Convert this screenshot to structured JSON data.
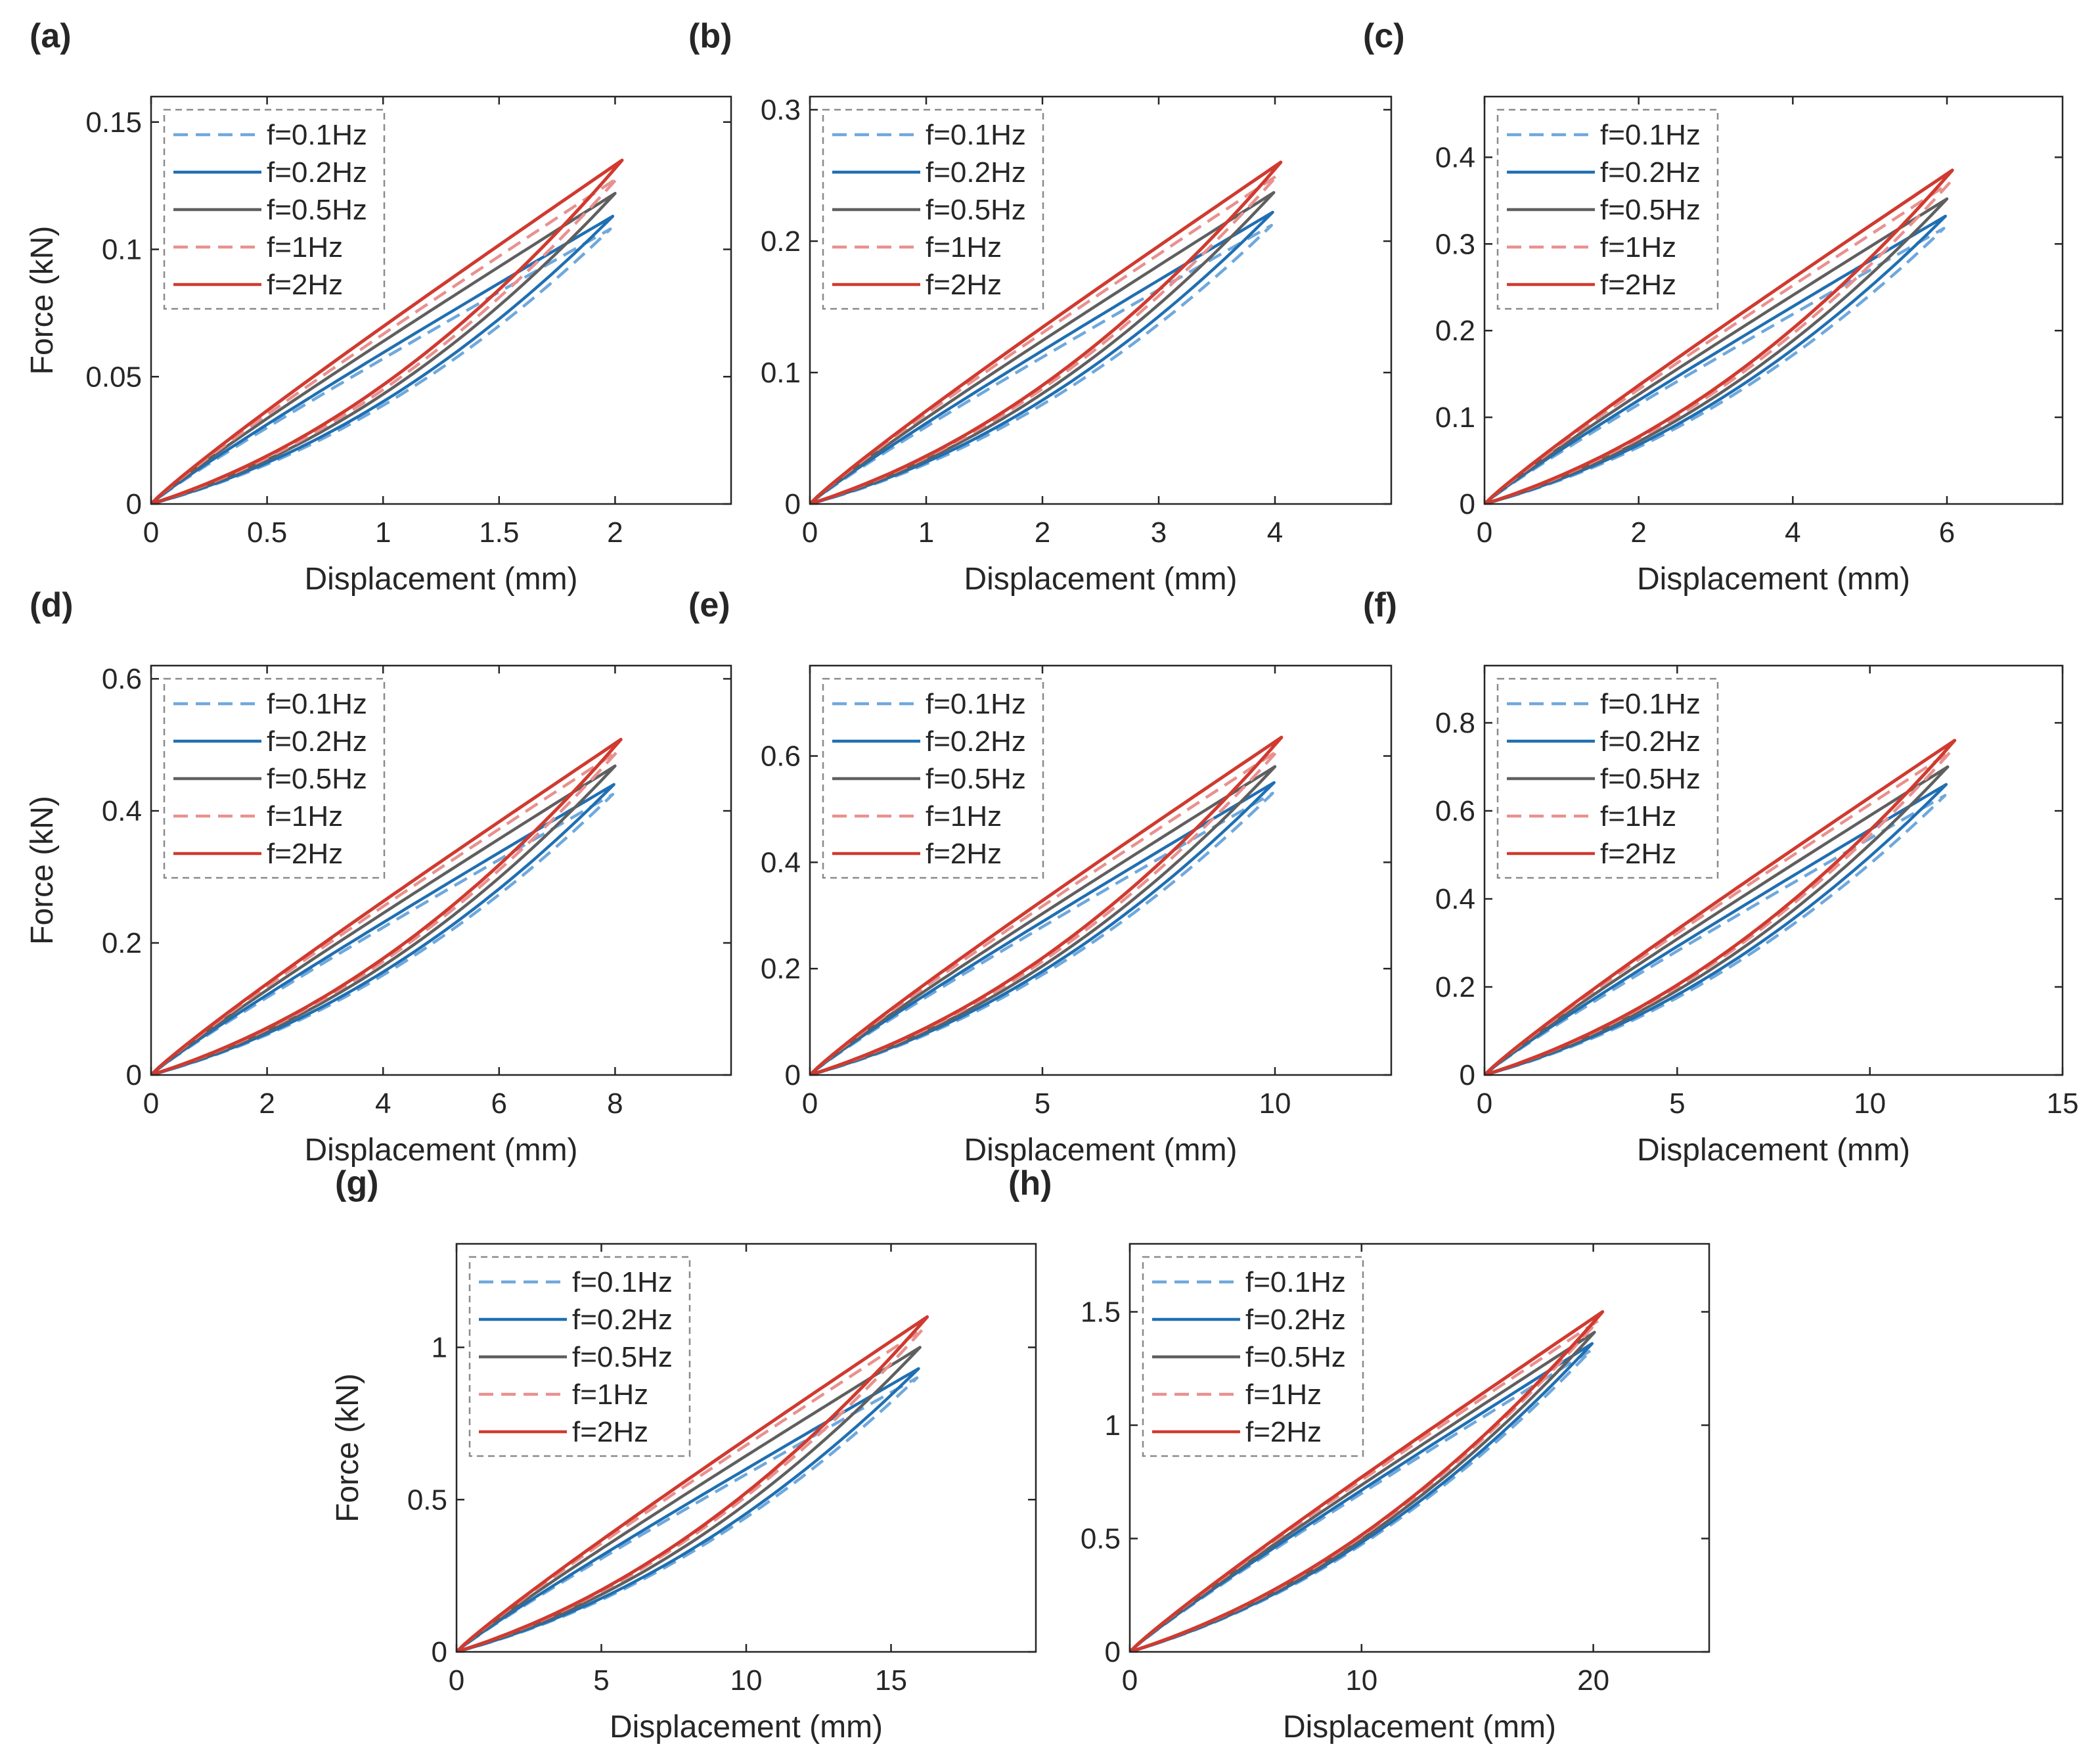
{
  "figure": {
    "series_styles": [
      {
        "freq": "f=0.1Hz",
        "color": "#6fa8dc",
        "dash": true
      },
      {
        "freq": "f=0.2Hz",
        "color": "#1f6fb2",
        "dash": false
      },
      {
        "freq": "f=0.5Hz",
        "color": "#5f5f5f",
        "dash": false
      },
      {
        "freq": "f=1Hz",
        "color": "#e8918f",
        "dash": true
      },
      {
        "freq": "f=2Hz",
        "color": "#d03a2f",
        "dash": false
      }
    ]
  },
  "chart_data": [
    {
      "panel": "(a)",
      "type": "line",
      "xlabel": "Displacement (mm)",
      "ylabel": "Force (kN)",
      "xlim": [
        0,
        2.5
      ],
      "ylim": [
        0,
        0.16
      ],
      "xticks": [
        0,
        0.5,
        1,
        1.5,
        2
      ],
      "xtick_labels": [
        "0",
        "0.5",
        "1",
        "1.5",
        "2"
      ],
      "yticks": [
        0,
        0.05,
        0.1,
        0.15
      ],
      "ytick_labels": [
        "0",
        "0.05",
        "0.1",
        "0.15"
      ],
      "legend": [
        "f=0.1Hz",
        "f=0.2Hz",
        "f=0.5Hz",
        "f=1Hz",
        "f=2Hz"
      ],
      "series": [
        {
          "name": "f=0.1Hz",
          "max_displacement": 1.98,
          "peak_force": 0.108
        },
        {
          "name": "f=0.2Hz",
          "max_displacement": 1.99,
          "peak_force": 0.113
        },
        {
          "name": "f=0.5Hz",
          "max_displacement": 2.0,
          "peak_force": 0.122
        },
        {
          "name": "f=1Hz",
          "max_displacement": 2.01,
          "peak_force": 0.128
        },
        {
          "name": "f=2Hz",
          "max_displacement": 2.03,
          "peak_force": 0.135
        }
      ]
    },
    {
      "panel": "(b)",
      "type": "line",
      "xlabel": "Displacement (mm)",
      "ylabel": "",
      "xlim": [
        0,
        5
      ],
      "ylim": [
        0,
        0.31
      ],
      "xticks": [
        0,
        1,
        2,
        3,
        4
      ],
      "xtick_labels": [
        "0",
        "1",
        "2",
        "3",
        "4"
      ],
      "yticks": [
        0,
        0.1,
        0.2,
        0.3
      ],
      "ytick_labels": [
        "0",
        "0.1",
        "0.2",
        "0.3"
      ],
      "legend": [
        "f=0.1Hz",
        "f=0.2Hz",
        "f=0.5Hz",
        "f=1Hz",
        "f=2Hz"
      ],
      "series": [
        {
          "name": "f=0.1Hz",
          "max_displacement": 3.97,
          "peak_force": 0.212
        },
        {
          "name": "f=0.2Hz",
          "max_displacement": 3.98,
          "peak_force": 0.222
        },
        {
          "name": "f=0.5Hz",
          "max_displacement": 3.99,
          "peak_force": 0.237
        },
        {
          "name": "f=1Hz",
          "max_displacement": 4.02,
          "peak_force": 0.25
        },
        {
          "name": "f=2Hz",
          "max_displacement": 4.05,
          "peak_force": 0.26
        }
      ]
    },
    {
      "panel": "(c)",
      "type": "line",
      "xlabel": "Displacement (mm)",
      "ylabel": "",
      "xlim": [
        0,
        7.5
      ],
      "ylim": [
        0,
        0.47
      ],
      "xticks": [
        0,
        2,
        4,
        6
      ],
      "xtick_labels": [
        "0",
        "2",
        "4",
        "6"
      ],
      "yticks": [
        0,
        0.1,
        0.2,
        0.3,
        0.4
      ],
      "ytick_labels": [
        "0",
        "0.1",
        "0.2",
        "0.3",
        "0.4"
      ],
      "legend": [
        "f=0.1Hz",
        "f=0.2Hz",
        "f=0.5Hz",
        "f=1Hz",
        "f=2Hz"
      ],
      "series": [
        {
          "name": "f=0.1Hz",
          "max_displacement": 5.96,
          "peak_force": 0.318
        },
        {
          "name": "f=0.2Hz",
          "max_displacement": 5.98,
          "peak_force": 0.332
        },
        {
          "name": "f=0.5Hz",
          "max_displacement": 6.0,
          "peak_force": 0.352
        },
        {
          "name": "f=1Hz",
          "max_displacement": 6.03,
          "peak_force": 0.37
        },
        {
          "name": "f=2Hz",
          "max_displacement": 6.07,
          "peak_force": 0.385
        }
      ]
    },
    {
      "panel": "(d)",
      "type": "line",
      "xlabel": "Displacement (mm)",
      "ylabel": "Force (kN)",
      "xlim": [
        0,
        10
      ],
      "ylim": [
        0,
        0.62
      ],
      "xticks": [
        0,
        2,
        4,
        6,
        8
      ],
      "xtick_labels": [
        "0",
        "2",
        "4",
        "6",
        "8"
      ],
      "yticks": [
        0,
        0.2,
        0.4,
        0.6
      ],
      "ytick_labels": [
        "0",
        "0.2",
        "0.4",
        "0.6"
      ],
      "legend": [
        "f=0.1Hz",
        "f=0.2Hz",
        "f=0.5Hz",
        "f=1Hz",
        "f=2Hz"
      ],
      "series": [
        {
          "name": "f=0.1Hz",
          "max_displacement": 7.96,
          "peak_force": 0.425
        },
        {
          "name": "f=0.2Hz",
          "max_displacement": 7.98,
          "peak_force": 0.44
        },
        {
          "name": "f=0.5Hz",
          "max_displacement": 8.0,
          "peak_force": 0.468
        },
        {
          "name": "f=1Hz",
          "max_displacement": 8.04,
          "peak_force": 0.49
        },
        {
          "name": "f=2Hz",
          "max_displacement": 8.1,
          "peak_force": 0.508
        }
      ]
    },
    {
      "panel": "(e)",
      "type": "line",
      "xlabel": "Displacement (mm)",
      "ylabel": "",
      "xlim": [
        0,
        12.5
      ],
      "ylim": [
        0,
        0.77
      ],
      "xticks": [
        0,
        5,
        10
      ],
      "xtick_labels": [
        "0",
        "5",
        "10"
      ],
      "yticks": [
        0,
        0.2,
        0.4,
        0.6
      ],
      "ytick_labels": [
        "0",
        "0.2",
        "0.4",
        "0.6"
      ],
      "legend": [
        "f=0.1Hz",
        "f=0.2Hz",
        "f=0.5Hz",
        "f=1Hz",
        "f=2Hz"
      ],
      "series": [
        {
          "name": "f=0.1Hz",
          "max_displacement": 9.95,
          "peak_force": 0.53
        },
        {
          "name": "f=0.2Hz",
          "max_displacement": 9.98,
          "peak_force": 0.55
        },
        {
          "name": "f=0.5Hz",
          "max_displacement": 10.0,
          "peak_force": 0.58
        },
        {
          "name": "f=1Hz",
          "max_displacement": 10.06,
          "peak_force": 0.61
        },
        {
          "name": "f=2Hz",
          "max_displacement": 10.14,
          "peak_force": 0.635
        }
      ]
    },
    {
      "panel": "(f)",
      "type": "line",
      "xlabel": "Displacement (mm)",
      "ylabel": "",
      "xlim": [
        0,
        15
      ],
      "ylim": [
        0,
        0.93
      ],
      "xticks": [
        0,
        5,
        10,
        15
      ],
      "xtick_labels": [
        "0",
        "5",
        "10",
        "15"
      ],
      "yticks": [
        0,
        0.2,
        0.4,
        0.6,
        0.8
      ],
      "ytick_labels": [
        "0",
        "0.2",
        "0.4",
        "0.6",
        "0.8"
      ],
      "legend": [
        "f=0.1Hz",
        "f=0.2Hz",
        "f=0.5Hz",
        "f=1Hz",
        "f=2Hz"
      ],
      "series": [
        {
          "name": "f=0.1Hz",
          "max_displacement": 11.95,
          "peak_force": 0.635
        },
        {
          "name": "f=0.2Hz",
          "max_displacement": 11.98,
          "peak_force": 0.66
        },
        {
          "name": "f=0.5Hz",
          "max_displacement": 12.02,
          "peak_force": 0.7
        },
        {
          "name": "f=1Hz",
          "max_displacement": 12.1,
          "peak_force": 0.735
        },
        {
          "name": "f=2Hz",
          "max_displacement": 12.2,
          "peak_force": 0.76
        }
      ]
    },
    {
      "panel": "(g)",
      "type": "line",
      "xlabel": "Displacement (mm)",
      "ylabel": "Force (kN)",
      "xlim": [
        0,
        20
      ],
      "ylim": [
        0,
        1.34
      ],
      "xticks": [
        0,
        5,
        10,
        15
      ],
      "xtick_labels": [
        "0",
        "5",
        "10",
        "15"
      ],
      "yticks": [
        0,
        0.5,
        1
      ],
      "ytick_labels": [
        "0",
        "0.5",
        "1"
      ],
      "legend": [
        "f=0.1Hz",
        "f=0.2Hz",
        "f=0.5Hz",
        "f=1Hz",
        "f=2Hz"
      ],
      "series": [
        {
          "name": "f=0.1Hz",
          "max_displacement": 15.9,
          "peak_force": 0.9
        },
        {
          "name": "f=0.2Hz",
          "max_displacement": 15.95,
          "peak_force": 0.93
        },
        {
          "name": "f=0.5Hz",
          "max_displacement": 16.0,
          "peak_force": 1.0
        },
        {
          "name": "f=1Hz",
          "max_displacement": 16.1,
          "peak_force": 1.06
        },
        {
          "name": "f=2Hz",
          "max_displacement": 16.25,
          "peak_force": 1.1
        }
      ]
    },
    {
      "panel": "(h)",
      "type": "line",
      "xlabel": "Displacement (mm)",
      "ylabel": "",
      "xlim": [
        0,
        25
      ],
      "ylim": [
        0,
        1.8
      ],
      "xticks": [
        0,
        10,
        20
      ],
      "xtick_labels": [
        "0",
        "10",
        "20"
      ],
      "yticks": [
        0,
        0.5,
        1,
        1.5
      ],
      "ytick_labels": [
        "0",
        "0.5",
        "1",
        "1.5"
      ],
      "legend": [
        "f=0.1Hz",
        "f=0.2Hz",
        "f=0.5Hz",
        "f=1Hz",
        "f=2Hz"
      ],
      "series": [
        {
          "name": "f=0.1Hz",
          "max_displacement": 19.9,
          "peak_force": 1.33
        },
        {
          "name": "f=0.2Hz",
          "max_displacement": 19.95,
          "peak_force": 1.36
        },
        {
          "name": "f=0.5Hz",
          "max_displacement": 20.05,
          "peak_force": 1.41
        },
        {
          "name": "f=1Hz",
          "max_displacement": 20.2,
          "peak_force": 1.46
        },
        {
          "name": "f=2Hz",
          "max_displacement": 20.4,
          "peak_force": 1.5
        }
      ]
    }
  ]
}
